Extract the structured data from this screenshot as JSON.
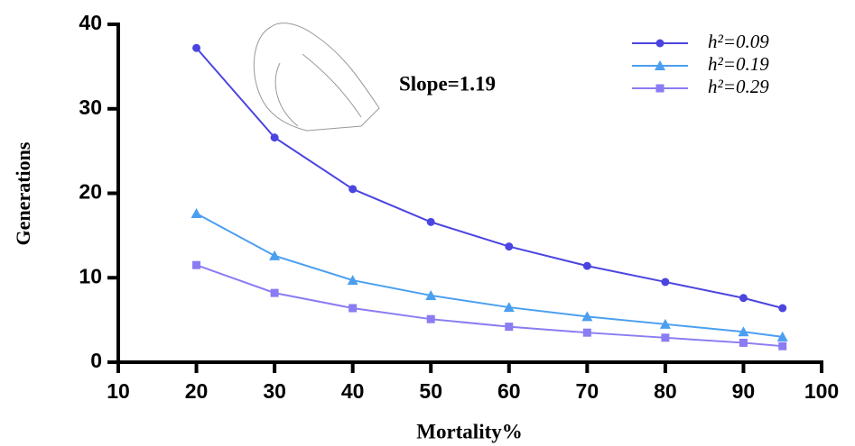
{
  "chart_data": {
    "type": "line",
    "x": [
      20,
      30,
      40,
      50,
      60,
      70,
      80,
      90,
      95
    ],
    "series": [
      {
        "name": "h²=0.09",
        "color": "#4b45e0",
        "marker": "circle",
        "values": [
          37.2,
          26.6,
          20.5,
          16.6,
          13.7,
          11.4,
          9.5,
          7.6,
          6.4
        ]
      },
      {
        "name": "h²=0.19",
        "color": "#4a9ff0",
        "marker": "triangle",
        "values": [
          17.6,
          12.6,
          9.7,
          7.9,
          6.5,
          5.4,
          4.5,
          3.6,
          3.0
        ]
      },
      {
        "name": "h²=0.29",
        "color": "#8a7cf2",
        "marker": "square",
        "values": [
          11.5,
          8.2,
          6.4,
          5.1,
          4.2,
          3.5,
          2.9,
          2.3,
          1.9
        ]
      }
    ],
    "annotation": "Slope=1.19",
    "x_label": "Mortality%",
    "y_label": "Generations",
    "xlim": [
      10,
      100
    ],
    "xticks": [
      10,
      20,
      30,
      40,
      50,
      60,
      70,
      80,
      90,
      100
    ],
    "ylim": [
      0,
      40
    ],
    "yticks": [
      0,
      10,
      20,
      30,
      40
    ],
    "legend": "upper right"
  }
}
